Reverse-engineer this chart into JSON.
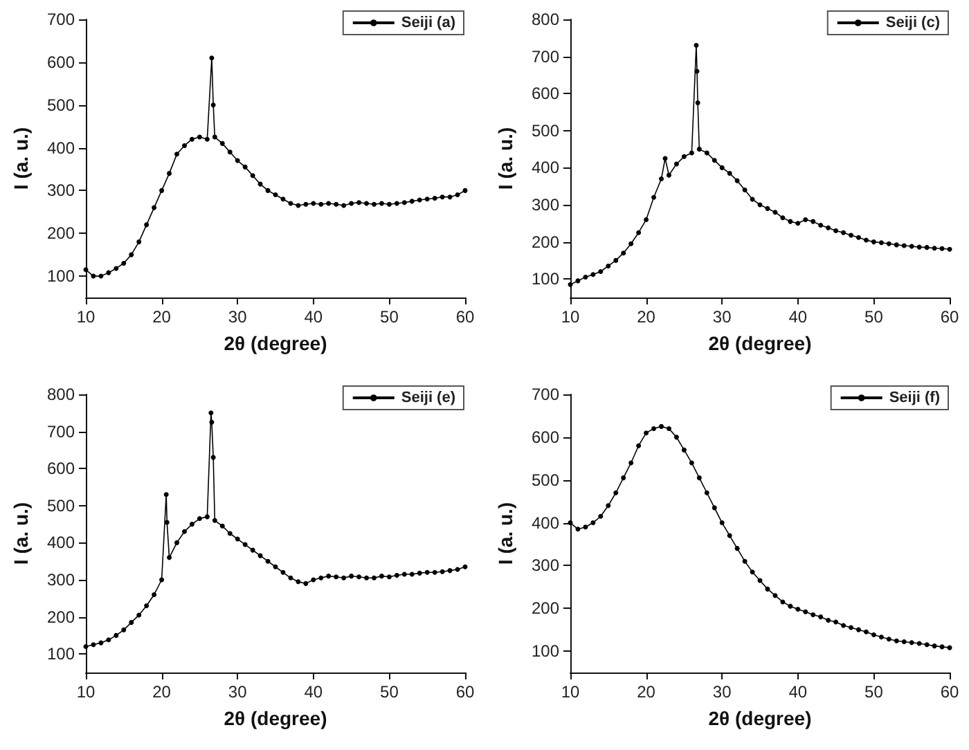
{
  "chart_data": [
    {
      "type": "line",
      "xlabel": "2θ (degree)",
      "ylabel": "I (a. u.)",
      "xlim": [
        10,
        60
      ],
      "xticks": [
        10,
        20,
        30,
        40,
        50,
        60
      ],
      "ylim": [
        50,
        700
      ],
      "yticks": [
        100,
        200,
        300,
        400,
        500,
        600,
        700
      ],
      "legend": "top right",
      "marker": "circle",
      "grid": false,
      "series": [
        {
          "name": "Seiji (a)",
          "color": "#000000",
          "x": [
            10,
            11,
            12,
            13,
            14,
            15,
            16,
            17,
            18,
            19,
            20,
            21,
            22,
            23,
            24,
            25,
            26,
            26.6,
            26.8,
            27,
            28,
            29,
            30,
            31,
            32,
            33,
            34,
            35,
            36,
            37,
            38,
            39,
            40,
            41,
            42,
            43,
            44,
            45,
            46,
            47,
            48,
            49,
            50,
            51,
            52,
            53,
            54,
            55,
            56,
            57,
            58,
            59,
            60
          ],
          "values": [
            115,
            100,
            100,
            108,
            118,
            130,
            150,
            180,
            220,
            260,
            300,
            340,
            385,
            405,
            420,
            425,
            420,
            610,
            500,
            425,
            410,
            390,
            370,
            355,
            335,
            315,
            300,
            290,
            280,
            270,
            265,
            268,
            270,
            268,
            270,
            268,
            265,
            270,
            272,
            270,
            268,
            270,
            268,
            270,
            272,
            275,
            278,
            280,
            282,
            285,
            285,
            290,
            300
          ]
        }
      ]
    },
    {
      "type": "line",
      "xlabel": "2θ (degree)",
      "ylabel": "I (a. u.)",
      "xlim": [
        10,
        60
      ],
      "xticks": [
        10,
        20,
        30,
        40,
        50,
        60
      ],
      "ylim": [
        50,
        800
      ],
      "yticks": [
        100,
        200,
        300,
        400,
        500,
        600,
        700,
        800
      ],
      "legend": "top right",
      "marker": "circle",
      "grid": false,
      "series": [
        {
          "name": "Seiji (c)",
          "color": "#000000",
          "x": [
            10,
            11,
            12,
            13,
            14,
            15,
            16,
            17,
            18,
            19,
            20,
            21,
            22,
            22.5,
            23,
            24,
            25,
            26,
            26.6,
            26.7,
            26.8,
            27,
            28,
            29,
            30,
            31,
            32,
            33,
            34,
            35,
            36,
            37,
            38,
            39,
            40,
            41,
            42,
            43,
            44,
            45,
            46,
            47,
            48,
            49,
            50,
            51,
            52,
            53,
            54,
            55,
            56,
            57,
            58,
            59,
            60
          ],
          "values": [
            85,
            95,
            105,
            112,
            120,
            135,
            150,
            170,
            195,
            225,
            260,
            320,
            370,
            425,
            380,
            410,
            430,
            440,
            730,
            660,
            575,
            450,
            440,
            420,
            400,
            385,
            365,
            340,
            315,
            300,
            290,
            280,
            265,
            255,
            250,
            260,
            255,
            245,
            238,
            230,
            225,
            218,
            212,
            205,
            200,
            198,
            195,
            192,
            190,
            188,
            186,
            185,
            183,
            182,
            180
          ]
        }
      ]
    },
    {
      "type": "line",
      "xlabel": "2θ (degree)",
      "ylabel": "I (a. u.)",
      "xlim": [
        10,
        60
      ],
      "xticks": [
        10,
        20,
        30,
        40,
        50,
        60
      ],
      "ylim": [
        50,
        800
      ],
      "yticks": [
        100,
        200,
        300,
        400,
        500,
        600,
        700,
        800
      ],
      "legend": "top right",
      "marker": "circle",
      "grid": false,
      "series": [
        {
          "name": "Seiji (e)",
          "color": "#000000",
          "x": [
            10,
            11,
            12,
            13,
            14,
            15,
            16,
            17,
            18,
            19,
            20,
            20.6,
            20.7,
            21,
            22,
            23,
            24,
            25,
            26,
            26.5,
            26.6,
            26.8,
            27,
            28,
            29,
            30,
            31,
            32,
            33,
            34,
            35,
            36,
            37,
            38,
            39,
            40,
            41,
            42,
            43,
            44,
            45,
            46,
            47,
            48,
            49,
            50,
            51,
            52,
            53,
            54,
            55,
            56,
            57,
            58,
            59,
            60
          ],
          "values": [
            120,
            125,
            130,
            138,
            150,
            165,
            185,
            205,
            230,
            260,
            300,
            530,
            455,
            360,
            400,
            430,
            450,
            465,
            470,
            750,
            725,
            630,
            460,
            445,
            425,
            410,
            395,
            380,
            365,
            350,
            335,
            320,
            305,
            295,
            290,
            300,
            305,
            310,
            308,
            305,
            310,
            308,
            305,
            305,
            310,
            308,
            312,
            315,
            315,
            318,
            320,
            320,
            322,
            325,
            328,
            335
          ]
        }
      ]
    },
    {
      "type": "line",
      "xlabel": "2θ (degree)",
      "ylabel": "I (a. u.)",
      "xlim": [
        10,
        60
      ],
      "xticks": [
        10,
        20,
        30,
        40,
        50,
        60
      ],
      "ylim": [
        50,
        700
      ],
      "yticks": [
        100,
        200,
        300,
        400,
        500,
        600,
        700
      ],
      "legend": "top right",
      "marker": "circle",
      "grid": false,
      "series": [
        {
          "name": "Seiji (f)",
          "color": "#000000",
          "x": [
            10,
            11,
            12,
            13,
            14,
            15,
            16,
            17,
            18,
            19,
            20,
            21,
            22,
            23,
            24,
            25,
            26,
            27,
            28,
            29,
            30,
            31,
            32,
            33,
            34,
            35,
            36,
            37,
            38,
            39,
            40,
            41,
            42,
            43,
            44,
            45,
            46,
            47,
            48,
            49,
            50,
            51,
            52,
            53,
            54,
            55,
            56,
            57,
            58,
            59,
            60
          ],
          "values": [
            400,
            385,
            390,
            400,
            415,
            440,
            470,
            505,
            540,
            580,
            610,
            620,
            625,
            620,
            600,
            570,
            540,
            505,
            470,
            435,
            400,
            370,
            340,
            310,
            285,
            265,
            245,
            230,
            215,
            205,
            198,
            192,
            185,
            180,
            172,
            168,
            160,
            155,
            150,
            145,
            138,
            133,
            128,
            124,
            122,
            120,
            118,
            115,
            112,
            110,
            108
          ]
        }
      ]
    }
  ]
}
